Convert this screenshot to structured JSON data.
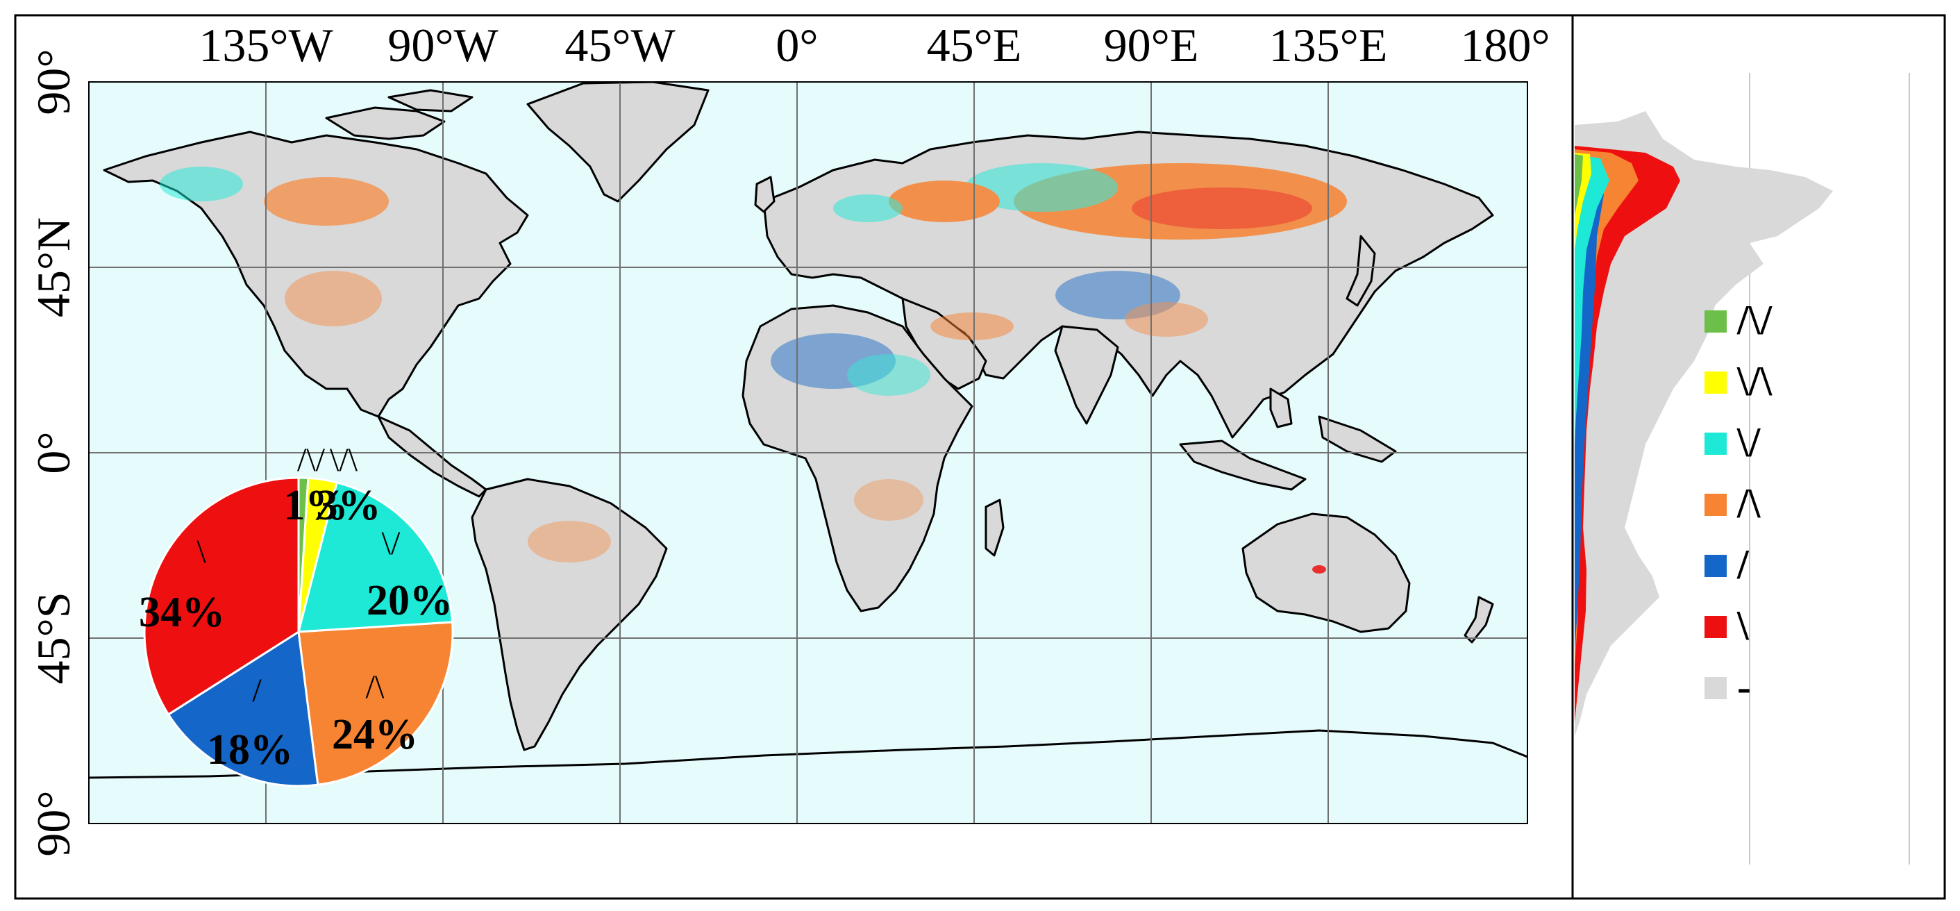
{
  "map": {
    "lon_ticks": [
      "135°W",
      "90°W",
      "45°W",
      "0°",
      "45°E",
      "90°E",
      "135°E",
      "180°"
    ],
    "lat_ticks": [
      "90°",
      "45°N",
      "0°",
      "45°S",
      "90°"
    ]
  },
  "chart_data": [
    {
      "type": "pie",
      "categories": [
        "/\\/",
        "\\/\\",
        "\\/",
        "/\\",
        "/",
        "\\"
      ],
      "values": [
        1,
        3,
        20,
        24,
        18,
        34
      ],
      "labels": [
        "1%",
        "3%",
        "20%",
        "24%",
        "18%",
        "34%"
      ],
      "colors": [
        "#6cc04a",
        "#ffff00",
        "#1de9d6",
        "#f78432",
        "#1467c8",
        "#ee1010"
      ]
    },
    {
      "type": "area",
      "orientation": "horizontal",
      "note": "latitudinal profile of pattern frequency, plotted beside the map",
      "ylim": [
        -90,
        90
      ]
    }
  ],
  "legend": {
    "items": [
      {
        "symbol": "/\\/",
        "color": "#6cc04a"
      },
      {
        "symbol": "\\/\\",
        "color": "#ffff00"
      },
      {
        "symbol": "\\/",
        "color": "#1de9d6"
      },
      {
        "symbol": "/\\",
        "color": "#f78432"
      },
      {
        "symbol": "/",
        "color": "#1467c8"
      },
      {
        "symbol": "\\",
        "color": "#ee1010"
      },
      {
        "symbol": "-",
        "color": "#d9d9d9"
      }
    ]
  },
  "colors": {
    "ocean": "#e6fcfc",
    "land": "#d9d9d9",
    "frame": "#000000",
    "grid": "#707070"
  }
}
